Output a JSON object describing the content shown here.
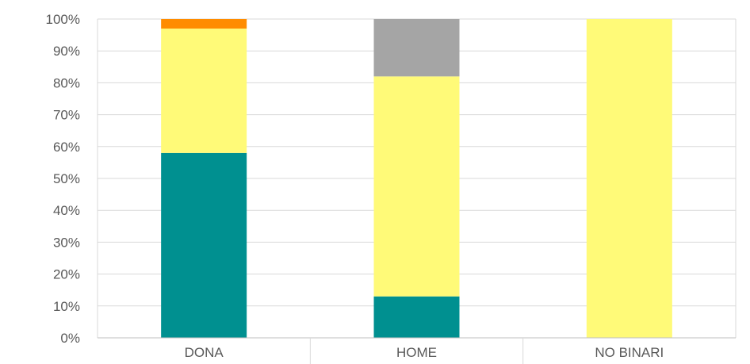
{
  "chart_data": {
    "type": "bar",
    "stacked": true,
    "percent": true,
    "categories": [
      "DONA",
      "HOME",
      "NO BINARI"
    ],
    "series": [
      {
        "values": [
          58,
          13,
          0
        ],
        "color": "#009090"
      },
      {
        "values": [
          39,
          69,
          100
        ],
        "color": "#FFFA78"
      },
      {
        "values": [
          0,
          18,
          0
        ],
        "color": "#A5A5A5"
      },
      {
        "values": [
          3,
          0,
          0
        ],
        "color": "#FF8C00"
      }
    ],
    "ylim": [
      0,
      100
    ],
    "yticks": [
      "0%",
      "10%",
      "20%",
      "30%",
      "40%",
      "50%",
      "60%",
      "70%",
      "80%",
      "90%",
      "100%"
    ],
    "grid": true,
    "legend": "none",
    "title": "",
    "xlabel": "",
    "ylabel": ""
  }
}
